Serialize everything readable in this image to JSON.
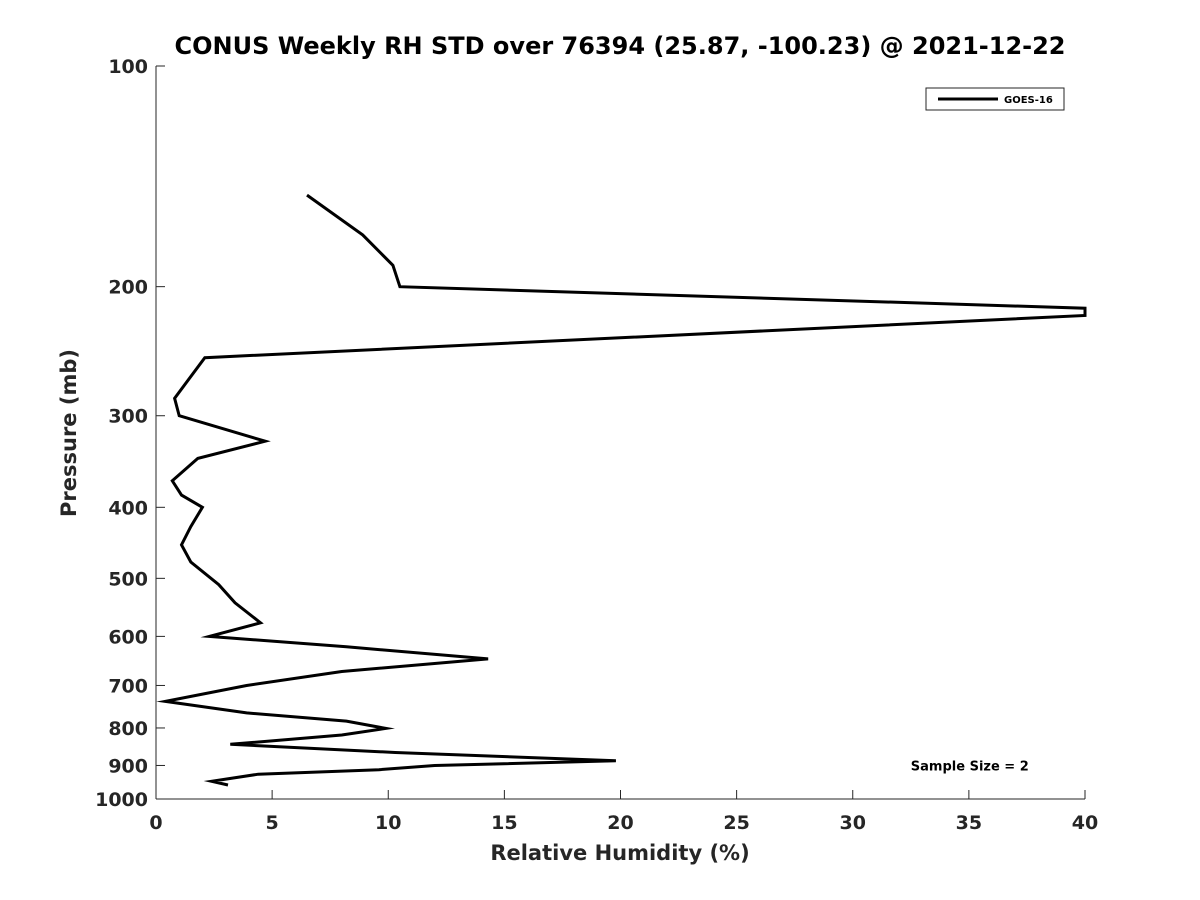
{
  "chart_data": {
    "type": "line",
    "title": "CONUS Weekly RH STD over 76394 (25.87, -100.23) @ 2021-12-22",
    "xlabel": "Relative Humidity (%)",
    "ylabel": "Pressure (mb)",
    "xlim": [
      0,
      40
    ],
    "ylim": [
      100,
      1000
    ],
    "yscale": "log",
    "yreversed": true,
    "xticks": [
      0,
      5,
      10,
      15,
      20,
      25,
      30,
      35,
      40
    ],
    "yticks": [
      100,
      200,
      300,
      400,
      500,
      600,
      700,
      800,
      900,
      1000
    ],
    "xtick_labels": [
      "0",
      "5",
      "10",
      "15",
      "20",
      "25",
      "30",
      "35",
      "40"
    ],
    "ytick_labels": [
      "100",
      "200",
      "300",
      "400",
      "500",
      "600",
      "700",
      "800",
      "900",
      "1000"
    ],
    "grid": false,
    "legend_position": "top-right",
    "series": [
      {
        "name": "GOES-16",
        "color": "#000000",
        "points": [
          {
            "x": 6.5,
            "y": 150
          },
          {
            "x": 8.9,
            "y": 170
          },
          {
            "x": 10.2,
            "y": 187
          },
          {
            "x": 10.5,
            "y": 200
          },
          {
            "x": 40,
            "y": 214
          },
          {
            "x": 40,
            "y": 219
          },
          {
            "x": 2.1,
            "y": 250
          },
          {
            "x": 0.8,
            "y": 284
          },
          {
            "x": 1.0,
            "y": 300
          },
          {
            "x": 4.7,
            "y": 325
          },
          {
            "x": 1.8,
            "y": 343
          },
          {
            "x": 0.7,
            "y": 368
          },
          {
            "x": 1.1,
            "y": 385
          },
          {
            "x": 2.0,
            "y": 400
          },
          {
            "x": 1.5,
            "y": 425
          },
          {
            "x": 1.1,
            "y": 450
          },
          {
            "x": 1.5,
            "y": 475
          },
          {
            "x": 2.7,
            "y": 510
          },
          {
            "x": 3.4,
            "y": 540
          },
          {
            "x": 4.5,
            "y": 575
          },
          {
            "x": 2.3,
            "y": 600
          },
          {
            "x": 8.2,
            "y": 620
          },
          {
            "x": 14.3,
            "y": 644
          },
          {
            "x": 8.0,
            "y": 670
          },
          {
            "x": 3.9,
            "y": 700
          },
          {
            "x": 0.4,
            "y": 736
          },
          {
            "x": 3.9,
            "y": 763
          },
          {
            "x": 8.2,
            "y": 783
          },
          {
            "x": 9.9,
            "y": 801
          },
          {
            "x": 8.0,
            "y": 818
          },
          {
            "x": 3.2,
            "y": 842
          },
          {
            "x": 10.3,
            "y": 864
          },
          {
            "x": 19.8,
            "y": 887
          },
          {
            "x": 12.0,
            "y": 900
          },
          {
            "x": 9.6,
            "y": 912
          },
          {
            "x": 4.4,
            "y": 925
          },
          {
            "x": 2.4,
            "y": 946
          },
          {
            "x": 3.1,
            "y": 957
          }
        ]
      }
    ],
    "annotations": [
      {
        "text": "Sample Size = 2",
        "x": 32.5,
        "y": 900
      }
    ]
  }
}
